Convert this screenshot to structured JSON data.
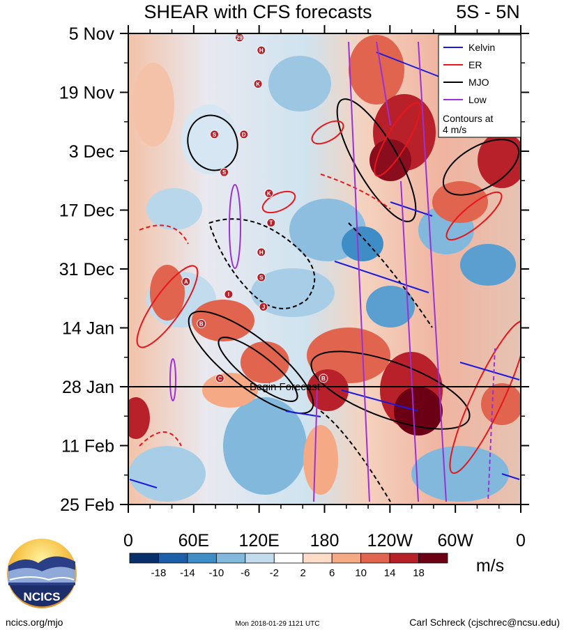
{
  "chart_data": {
    "type": "heatmap",
    "title": "SHEAR with CFS forecasts",
    "region_label": "5S - 5N",
    "y_ticks": [
      "5 Nov",
      "19 Nov",
      "3 Dec",
      "17 Dec",
      "31 Dec",
      "14 Jan",
      "28 Jan",
      "11 Feb",
      "25 Feb"
    ],
    "x_ticks": [
      {
        "label": "0",
        "lon": 0
      },
      {
        "label": "60E",
        "lon": 60
      },
      {
        "label": "120E",
        "lon": 120
      },
      {
        "label": "180",
        "lon": 180
      },
      {
        "label": "120W",
        "lon": 240
      },
      {
        "label": "60W",
        "lon": 300
      },
      {
        "label": "0",
        "lon": 360
      }
    ],
    "xlim": [
      0,
      360
    ],
    "ylim_days": [
      0,
      112
    ],
    "forecast_line": {
      "label": "Begin Forecast",
      "day": 84
    },
    "legend": {
      "items": [
        {
          "label": "Kelvin",
          "color": "#1a1adf"
        },
        {
          "label": "ER",
          "color": "#e8161a"
        },
        {
          "label": "MJO",
          "color": "#000000"
        },
        {
          "label": "Low",
          "color": "#9b30d9"
        }
      ],
      "note_line1": "Contours at",
      "note_line2": "4 m/s"
    },
    "colorbar": {
      "labels": [
        "-18",
        "-14",
        "-10",
        "-6",
        "-2",
        "2",
        "6",
        "10",
        "14",
        "18"
      ],
      "colors": [
        "#08306b",
        "#1c5fa8",
        "#3f8dc6",
        "#82b8db",
        "#c2dcee",
        "#ffffff",
        "#fddcc8",
        "#f6a985",
        "#e0644e",
        "#b8202a",
        "#6b0015"
      ],
      "unit": "m/s"
    },
    "storms": [
      {
        "label": "29",
        "lon": 102,
        "day": 1
      },
      {
        "label": "H",
        "lon": 122,
        "day": 4
      },
      {
        "label": "K",
        "lon": 119,
        "day": 12
      },
      {
        "label": "S",
        "lon": 79,
        "day": 24
      },
      {
        "label": "D",
        "lon": 106,
        "day": 24
      },
      {
        "label": "S",
        "lon": 88,
        "day": 33
      },
      {
        "label": "K",
        "lon": 129,
        "day": 38
      },
      {
        "label": "T",
        "lon": 131,
        "day": 45
      },
      {
        "label": "H",
        "lon": 122,
        "day": 52
      },
      {
        "label": "S",
        "lon": 122,
        "day": 58
      },
      {
        "label": "A",
        "lon": 53,
        "day": 59
      },
      {
        "label": "I",
        "lon": 92,
        "day": 62
      },
      {
        "label": "J",
        "lon": 124,
        "day": 65
      },
      {
        "label": "B",
        "lon": 67,
        "day": 69
      },
      {
        "label": "C",
        "lon": 84,
        "day": 82
      },
      {
        "label": "B",
        "lon": 179,
        "day": 82
      }
    ]
  },
  "footer": {
    "logo_text": "NCICS",
    "site": "ncics.org/mjo",
    "timestamp": "Mon 2018-01-29 1121 UTC",
    "author": "Carl Schreck (cjschrec@ncsu.edu)"
  }
}
